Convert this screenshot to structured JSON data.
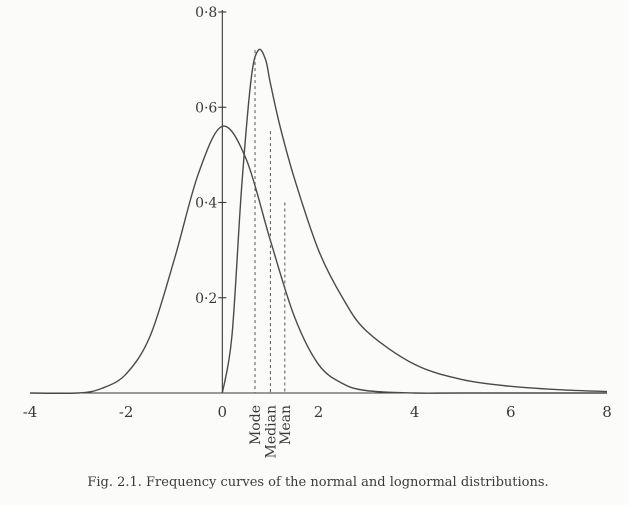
{
  "chart_data": {
    "type": "line",
    "title": "",
    "xlabel": "",
    "ylabel": "",
    "xlim": [
      -4,
      8
    ],
    "ylim": [
      0,
      0.8
    ],
    "x_ticks": [
      {
        "value": -4,
        "label": "-4"
      },
      {
        "value": -2,
        "label": "-2"
      },
      {
        "value": 0,
        "label": "0"
      },
      {
        "value": 2,
        "label": "2"
      },
      {
        "value": 4,
        "label": "4"
      },
      {
        "value": 6,
        "label": "6"
      },
      {
        "value": 8,
        "label": "8"
      }
    ],
    "y_ticks": [
      {
        "value": 0.2,
        "label": "0·2"
      },
      {
        "value": 0.4,
        "label": "0·4"
      },
      {
        "value": 0.6,
        "label": "0·6"
      },
      {
        "value": 0.8,
        "label": "0·8"
      }
    ],
    "grid": false,
    "legend": "none",
    "series": [
      {
        "x": [
          -4,
          -3,
          -2.5,
          -2,
          -1.5,
          -1,
          -0.5,
          0,
          0.5,
          1,
          1.5,
          2,
          2.5,
          3,
          4,
          5,
          8
        ],
        "y": [
          0.0,
          0.0,
          0.01,
          0.04,
          0.12,
          0.28,
          0.46,
          0.56,
          0.49,
          0.32,
          0.16,
          0.06,
          0.02,
          0.005,
          0.0,
          0.0,
          0.0
        ]
      },
      {
        "x": [
          0,
          0.2,
          0.4,
          0.6,
          0.75,
          0.9,
          1.0,
          1.2,
          1.5,
          2.0,
          2.5,
          3.0,
          4.0,
          5.0,
          6.0,
          7.0,
          8.0
        ],
        "y": [
          0.0,
          0.12,
          0.43,
          0.66,
          0.72,
          0.7,
          0.65,
          0.56,
          0.45,
          0.3,
          0.2,
          0.13,
          0.06,
          0.028,
          0.014,
          0.007,
          0.003
        ]
      }
    ],
    "annotations": [
      {
        "label": "Mode",
        "x": 0.68,
        "y": 0.72
      },
      {
        "label": "Median",
        "x": 1.0,
        "y": 0.55
      },
      {
        "label": "Mean",
        "x": 1.3,
        "y": 0.4
      }
    ],
    "caption": "Fig. 2.1.  Frequency curves of the normal and lognormal distributions."
  }
}
